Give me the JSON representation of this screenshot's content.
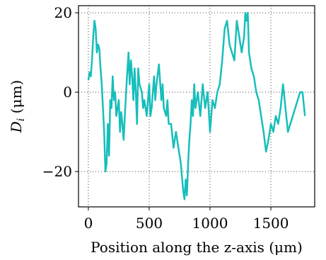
{
  "chart_data": {
    "type": "line",
    "xlabel": "Position along the z-axis (μm)",
    "ylabel": [
      "D",
      "i",
      " (μm)"
    ],
    "x": [
      0,
      10,
      20,
      30,
      40,
      50,
      60,
      70,
      80,
      90,
      100,
      110,
      120,
      130,
      140,
      150,
      160,
      170,
      180,
      190,
      200,
      210,
      220,
      230,
      240,
      250,
      260,
      270,
      280,
      290,
      300,
      310,
      320,
      330,
      340,
      350,
      360,
      370,
      380,
      390,
      400,
      410,
      420,
      440,
      450,
      460,
      480,
      500,
      510,
      520,
      540,
      550,
      560,
      580,
      600,
      610,
      620,
      640,
      650,
      660,
      680,
      700,
      720,
      740,
      760,
      780,
      790,
      800,
      810,
      820,
      830,
      840,
      850,
      860,
      870,
      880,
      900,
      920,
      940,
      960,
      980,
      1000,
      1020,
      1040,
      1060,
      1080,
      1100,
      1120,
      1140,
      1160,
      1180,
      1200,
      1220,
      1240,
      1260,
      1280,
      1290,
      1300,
      1310,
      1320,
      1340,
      1360,
      1380,
      1400,
      1420,
      1440,
      1460,
      1480,
      1500,
      1520,
      1540,
      1560,
      1580,
      1600,
      1620,
      1640,
      1660,
      1680,
      1700,
      1720,
      1740,
      1760,
      1780
    ],
    "series": [
      {
        "color": "#17bebb",
        "values": [
          3,
          5,
          4,
          8,
          14,
          18,
          16,
          10,
          12,
          11,
          6,
          2,
          -4,
          -10,
          -20,
          -18,
          -8,
          -16,
          -2,
          -4,
          4,
          -2,
          0,
          -6,
          -4,
          -2,
          -10,
          -5,
          -8,
          -12,
          -6,
          0,
          5,
          10,
          2,
          8,
          4,
          -2,
          6,
          0,
          -8,
          6,
          2,
          0,
          -4,
          -2,
          -6,
          2,
          -6,
          -4,
          4,
          -2,
          2,
          7,
          -2,
          2,
          -4,
          -6,
          -2,
          -8,
          -8,
          -14,
          -10,
          -14,
          -18,
          -25,
          -27,
          -22,
          -26,
          -18,
          -12,
          -8,
          -2,
          -6,
          2,
          -4,
          0,
          -6,
          2,
          -4,
          0,
          -10,
          -2,
          -4,
          0,
          2,
          8,
          16,
          18,
          12,
          10,
          8,
          18,
          14,
          10,
          14,
          20,
          18,
          20,
          10,
          6,
          4,
          0,
          -2,
          -6,
          -10,
          -15,
          -12,
          -8,
          -10,
          -6,
          -8,
          -4,
          2,
          -4,
          -10,
          -8,
          -6,
          -4,
          -2,
          0,
          0,
          -6
        ]
      }
    ],
    "xlim": [
      -81,
      1860
    ],
    "ylim": [
      -28.9,
      21.8
    ],
    "xticks": [
      0,
      500,
      1000,
      1500
    ],
    "yticks": [
      {
        "value": -20,
        "label": "−20"
      },
      0,
      20
    ],
    "grid": true
  }
}
